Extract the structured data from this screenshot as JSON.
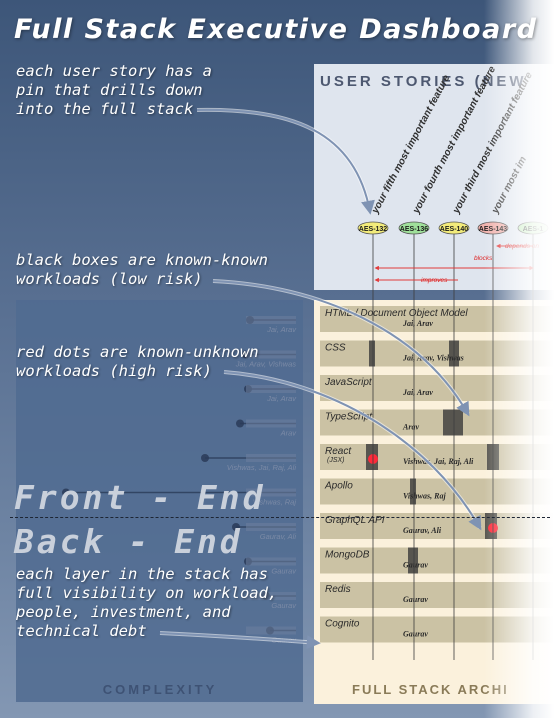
{
  "title": "Full Stack Executive Dashboard",
  "notes": [
    "each user story has a\npin that drills down\ninto the full stack",
    "black boxes are known-known\nworkloads (low risk)",
    "red dots are known-unknown\nworkloads (high risk)",
    "each layer in the stack has\nfull visibility on workload,\npeople, investment, and\ntechnical debt"
  ],
  "front_end_label": "Front - End",
  "back_end_label": "Back - End",
  "user_stories_header": "USER STORIES (NEW",
  "stories": [
    {
      "id": "AES-132",
      "label": "your fifth most important feature",
      "color": "#f2eb7a"
    },
    {
      "id": "AES-136",
      "label": "your fourth most important feature",
      "color": "#9fe09a"
    },
    {
      "id": "AES-140",
      "label": "your third most important feature",
      "color": "#f2eb7a"
    },
    {
      "id": "AES-143",
      "label": "your most im",
      "color": "#f0b2ad"
    },
    {
      "id": "AES-1",
      "label": "",
      "color": "#b8e8b0"
    }
  ],
  "relations": [
    "depends on",
    "blocks",
    "improves"
  ],
  "layers": [
    {
      "name": "HTML / Document Object Model",
      "people": "Jai, Arav"
    },
    {
      "name": "CSS",
      "people": "Jai, Arav, Vishwas"
    },
    {
      "name": "JavaScript",
      "people": "Jai, Arav"
    },
    {
      "name": "TypeScript",
      "people": "Arav"
    },
    {
      "name": "React",
      "sub": "(JSX)",
      "people": "Vishwas, Jai, Raj, Ali"
    },
    {
      "name": "Apollo",
      "people": "Vishwas, Raj"
    },
    {
      "name": "GraphQL API",
      "people": "Gaurav, Ali"
    },
    {
      "name": "MongoDB",
      "people": "Gaurav"
    },
    {
      "name": "Redis",
      "people": "Gaurav"
    },
    {
      "name": "Cognito",
      "people": "Gaurav"
    }
  ],
  "complexity_people": [
    "Jai, Arav",
    "Jai, Arav, Vishwas",
    "Jai, Arav",
    "Arav",
    "Vishwas, Jai, Raj, Ali",
    "Vishwas, Raj",
    "Gaurav, Ali",
    "Gaurav",
    "Gaurav",
    "Gaurav"
  ],
  "complexity_label": "COMPLEXITY",
  "architecture_label": "FULL STACK ARCHI",
  "colors": {
    "background": "#4a6388",
    "stories_panel": "#dfe5ee",
    "stack_panel": "#fbf1dc",
    "layer_bar": "#cbc2a4",
    "known_box": "#3a3a3a",
    "risk_dot": "#ff2a3a",
    "arrow": "#7f93b3"
  }
}
